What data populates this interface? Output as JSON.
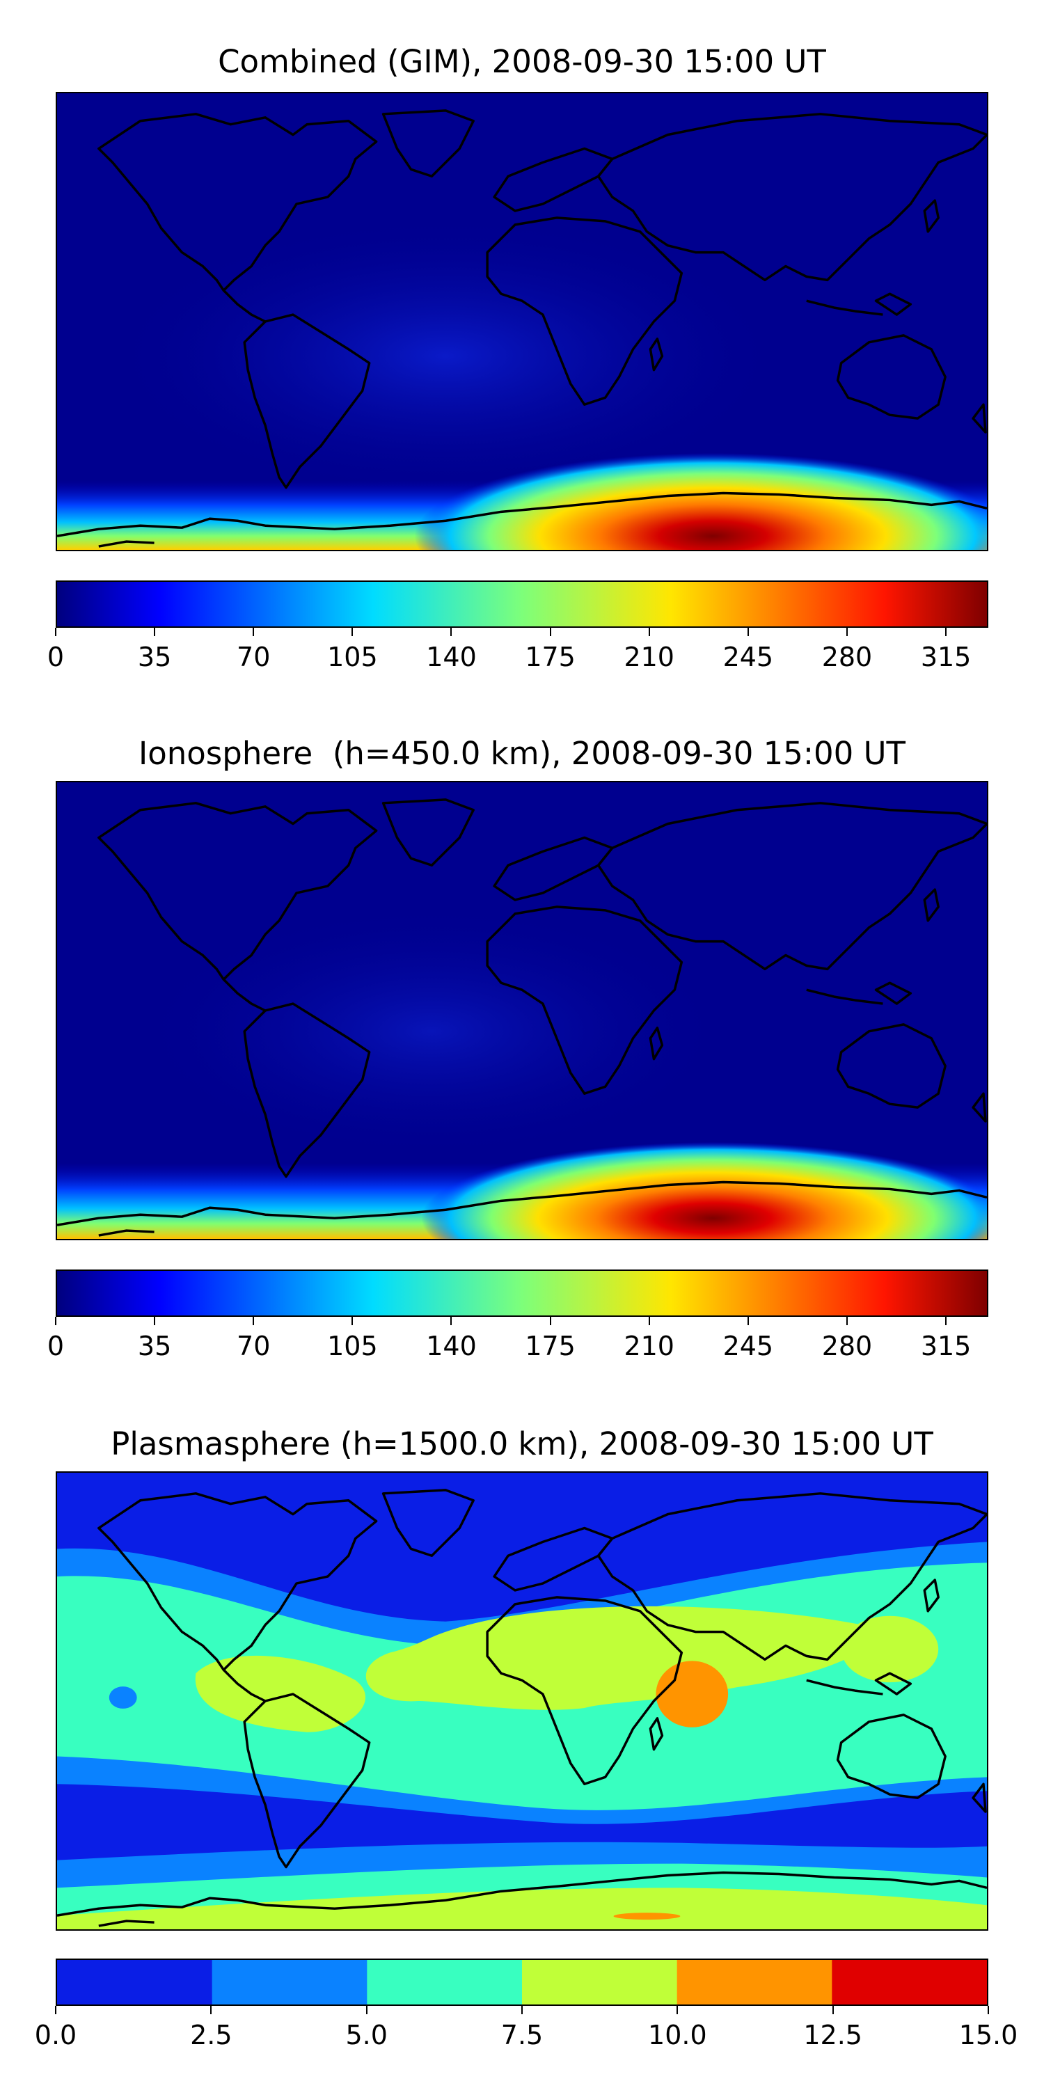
{
  "panels": [
    {
      "title": "Combined (GIM), 2008-09-30 15:00 UT",
      "colorbar": {
        "colormap": "jet",
        "range": [
          0,
          330
        ],
        "tick_labels": [
          "0",
          "35",
          "70",
          "105",
          "140",
          "175",
          "210",
          "245",
          "280",
          "315"
        ]
      }
    },
    {
      "title": "Ionosphere  (h=450.0 km), 2008-09-30 15:00 UT",
      "colorbar": {
        "colormap": "jet",
        "range": [
          0,
          330
        ],
        "tick_labels": [
          "0",
          "35",
          "70",
          "105",
          "140",
          "175",
          "210",
          "245",
          "280",
          "315"
        ]
      }
    },
    {
      "title": "Plasmasphere (h=1500.0 km), 2008-09-30 15:00 UT",
      "colorbar": {
        "colormap": "jet",
        "range": [
          0,
          15
        ],
        "levels": [
          0,
          2.5,
          5,
          7.5,
          10,
          12.5,
          15
        ],
        "level_colors": [
          "#0a1ee6",
          "#0a82ff",
          "#38ffc0",
          "#c0ff38",
          "#ff9400",
          "#e00000"
        ],
        "tick_labels": [
          "0.0",
          "2.5",
          "5.0",
          "7.5",
          "10.0",
          "12.5",
          "15.0"
        ]
      }
    }
  ],
  "colors": {
    "map_background": "#00008f",
    "coastline": "#000000"
  }
}
